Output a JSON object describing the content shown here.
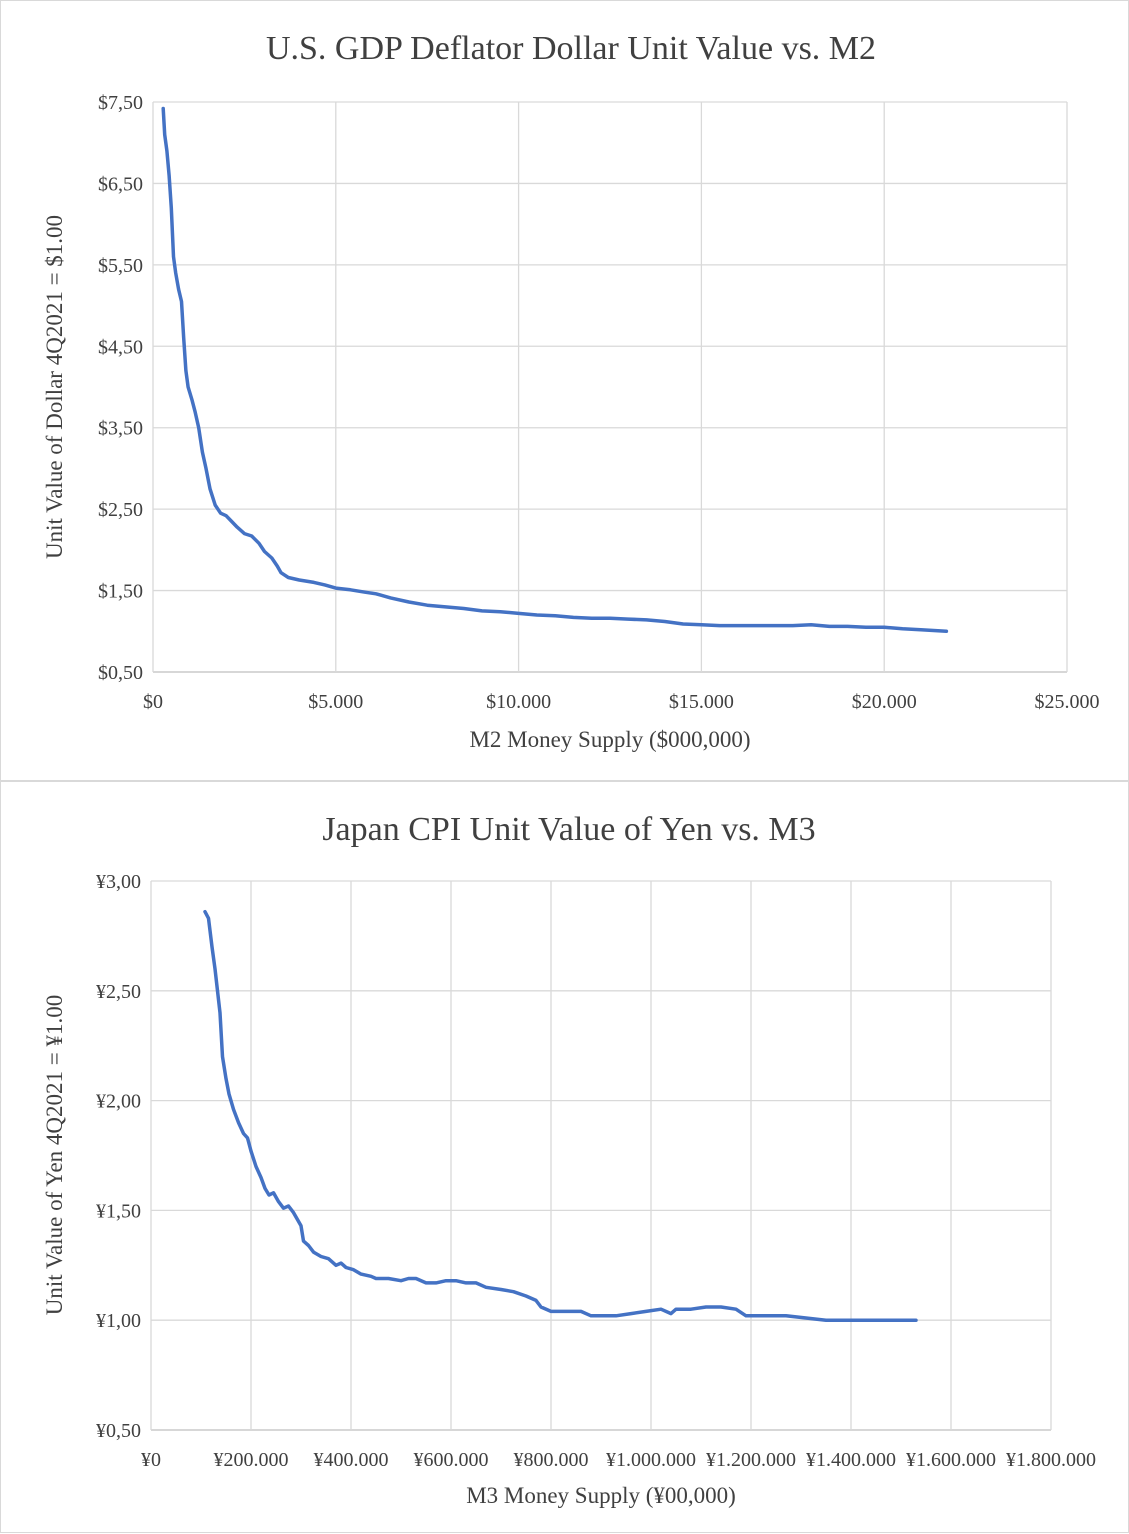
{
  "chart_data": [
    {
      "type": "line",
      "title": "U.S. GDP Deflator Dollar Unit Value vs. M2",
      "xlabel": "M2 Money Supply ($000,000)",
      "ylabel": "Unit Value of Dollar 4Q2021 = $1.00",
      "xlim": [
        0,
        25000
      ],
      "ylim": [
        0.5,
        7.5
      ],
      "x_ticks": [
        0,
        5000,
        10000,
        15000,
        20000,
        25000
      ],
      "x_tick_labels": [
        "$0",
        "$5.000",
        "$10.000",
        "$15.000",
        "$20.000",
        "$25.000"
      ],
      "y_ticks": [
        0.5,
        1.5,
        2.5,
        3.5,
        4.5,
        5.5,
        6.5,
        7.5
      ],
      "y_tick_labels": [
        "$0,50",
        "$1,50",
        "$2,50",
        "$3,50",
        "$4,50",
        "$5,50",
        "$6,50",
        "$7,50"
      ],
      "grid": true,
      "legend": "none",
      "series": [
        {
          "color": "#4472c4",
          "points": [
            [
              280,
              7.42
            ],
            [
              320,
              7.1
            ],
            [
              380,
              6.9
            ],
            [
              440,
              6.6
            ],
            [
              500,
              6.2
            ],
            [
              560,
              5.6
            ],
            [
              620,
              5.4
            ],
            [
              700,
              5.2
            ],
            [
              780,
              5.05
            ],
            [
              840,
              4.6
            ],
            [
              900,
              4.2
            ],
            [
              960,
              4.0
            ],
            [
              1060,
              3.85
            ],
            [
              1150,
              3.7
            ],
            [
              1250,
              3.5
            ],
            [
              1350,
              3.2
            ],
            [
              1450,
              3.0
            ],
            [
              1560,
              2.75
            ],
            [
              1700,
              2.55
            ],
            [
              1850,
              2.45
            ],
            [
              2000,
              2.42
            ],
            [
              2150,
              2.35
            ],
            [
              2300,
              2.28
            ],
            [
              2500,
              2.2
            ],
            [
              2700,
              2.17
            ],
            [
              2900,
              2.08
            ],
            [
              3050,
              1.98
            ],
            [
              3250,
              1.9
            ],
            [
              3400,
              1.8
            ],
            [
              3500,
              1.72
            ],
            [
              3700,
              1.66
            ],
            [
              4000,
              1.63
            ],
            [
              4400,
              1.6
            ],
            [
              4700,
              1.57
            ],
            [
              5000,
              1.53
            ],
            [
              5400,
              1.51
            ],
            [
              5800,
              1.48
            ],
            [
              6100,
              1.46
            ],
            [
              6500,
              1.41
            ],
            [
              7000,
              1.36
            ],
            [
              7500,
              1.32
            ],
            [
              8000,
              1.3
            ],
            [
              8500,
              1.28
            ],
            [
              9000,
              1.25
            ],
            [
              9500,
              1.24
            ],
            [
              10000,
              1.22
            ],
            [
              10500,
              1.2
            ],
            [
              11000,
              1.19
            ],
            [
              11500,
              1.17
            ],
            [
              12000,
              1.16
            ],
            [
              12500,
              1.16
            ],
            [
              13000,
              1.15
            ],
            [
              13500,
              1.14
            ],
            [
              14000,
              1.12
            ],
            [
              14500,
              1.09
            ],
            [
              15000,
              1.08
            ],
            [
              15500,
              1.07
            ],
            [
              16000,
              1.07
            ],
            [
              16500,
              1.07
            ],
            [
              17000,
              1.07
            ],
            [
              17500,
              1.07
            ],
            [
              18000,
              1.08
            ],
            [
              18500,
              1.06
            ],
            [
              19000,
              1.06
            ],
            [
              19500,
              1.05
            ],
            [
              20000,
              1.05
            ],
            [
              20500,
              1.03
            ],
            [
              21000,
              1.02
            ],
            [
              21700,
              1.0
            ]
          ]
        }
      ]
    },
    {
      "type": "line",
      "title": "Japan CPI Unit Value of Yen vs. M3",
      "xlabel": "M3 Money Supply (¥00,000)",
      "ylabel": "Unit Value of Yen 4Q2021 = ¥1.00",
      "xlim": [
        0,
        1800000
      ],
      "ylim": [
        0.5,
        3.0
      ],
      "x_ticks": [
        0,
        200000,
        400000,
        600000,
        800000,
        1000000,
        1200000,
        1400000,
        1600000,
        1800000
      ],
      "x_tick_labels": [
        "¥0",
        "¥200.000",
        "¥400.000",
        "¥600.000",
        "¥800.000",
        "¥1.000.000",
        "¥1.200.000",
        "¥1.400.000",
        "¥1.600.000",
        "¥1.800.000"
      ],
      "y_ticks": [
        0.5,
        1.0,
        1.5,
        2.0,
        2.5,
        3.0
      ],
      "y_tick_labels": [
        "¥0,50",
        "¥1,00",
        "¥1,50",
        "¥2,00",
        "¥2,50",
        "¥3,00"
      ],
      "grid": true,
      "legend": "none",
      "series": [
        {
          "color": "#4472c4",
          "points": [
            [
              108000,
              2.86
            ],
            [
              115000,
              2.83
            ],
            [
              122000,
              2.7
            ],
            [
              128000,
              2.6
            ],
            [
              133000,
              2.5
            ],
            [
              138000,
              2.4
            ],
            [
              143000,
              2.2
            ],
            [
              150000,
              2.1
            ],
            [
              156000,
              2.03
            ],
            [
              165000,
              1.96
            ],
            [
              175000,
              1.9
            ],
            [
              185000,
              1.85
            ],
            [
              193000,
              1.83
            ],
            [
              200000,
              1.77
            ],
            [
              210000,
              1.7
            ],
            [
              220000,
              1.65
            ],
            [
              228000,
              1.6
            ],
            [
              236000,
              1.57
            ],
            [
              245000,
              1.58
            ],
            [
              255000,
              1.54
            ],
            [
              265000,
              1.51
            ],
            [
              275000,
              1.52
            ],
            [
              285000,
              1.49
            ],
            [
              295000,
              1.45
            ],
            [
              300000,
              1.43
            ],
            [
              305000,
              1.36
            ],
            [
              315000,
              1.34
            ],
            [
              325000,
              1.31
            ],
            [
              340000,
              1.29
            ],
            [
              355000,
              1.28
            ],
            [
              370000,
              1.25
            ],
            [
              380000,
              1.26
            ],
            [
              390000,
              1.24
            ],
            [
              405000,
              1.23
            ],
            [
              420000,
              1.21
            ],
            [
              440000,
              1.2
            ],
            [
              450000,
              1.19
            ],
            [
              475000,
              1.19
            ],
            [
              500000,
              1.18
            ],
            [
              515000,
              1.19
            ],
            [
              530000,
              1.19
            ],
            [
              550000,
              1.17
            ],
            [
              570000,
              1.17
            ],
            [
              590000,
              1.18
            ],
            [
              610000,
              1.18
            ],
            [
              630000,
              1.17
            ],
            [
              650000,
              1.17
            ],
            [
              670000,
              1.15
            ],
            [
              700000,
              1.14
            ],
            [
              725000,
              1.13
            ],
            [
              750000,
              1.11
            ],
            [
              770000,
              1.09
            ],
            [
              780000,
              1.06
            ],
            [
              800000,
              1.04
            ],
            [
              830000,
              1.04
            ],
            [
              860000,
              1.04
            ],
            [
              880000,
              1.02
            ],
            [
              900000,
              1.02
            ],
            [
              930000,
              1.02
            ],
            [
              960000,
              1.03
            ],
            [
              990000,
              1.04
            ],
            [
              1020000,
              1.05
            ],
            [
              1040000,
              1.03
            ],
            [
              1050000,
              1.05
            ],
            [
              1080000,
              1.05
            ],
            [
              1110000,
              1.06
            ],
            [
              1140000,
              1.06
            ],
            [
              1170000,
              1.05
            ],
            [
              1190000,
              1.02
            ],
            [
              1230000,
              1.02
            ],
            [
              1270000,
              1.02
            ],
            [
              1310000,
              1.01
            ],
            [
              1350000,
              1.0
            ],
            [
              1400000,
              1.0
            ],
            [
              1450000,
              1.0
            ],
            [
              1500000,
              1.0
            ],
            [
              1530000,
              1.0
            ]
          ]
        }
      ]
    }
  ]
}
